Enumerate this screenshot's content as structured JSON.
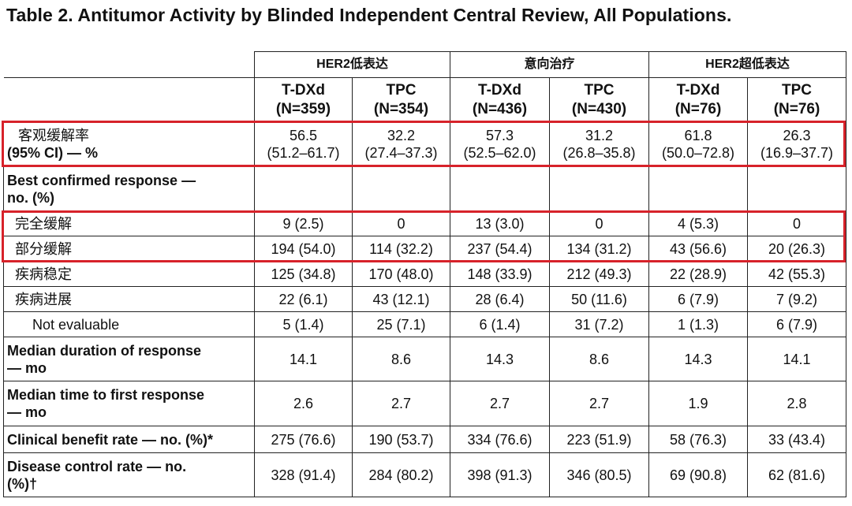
{
  "title": "Table 2. Antitumor Activity by Blinded Independent Central Review, All Populations.",
  "groups": [
    "HER2低表达",
    "意向治疗",
    "HER2超低表达"
  ],
  "arms": [
    {
      "name": "T-DXd",
      "n": "(N=359)"
    },
    {
      "name": "TPC",
      "n": "(N=354)"
    },
    {
      "name": "T-DXd",
      "n": "(N=436)"
    },
    {
      "name": "TPC",
      "n": "(N=430)"
    },
    {
      "name": "T-DXd",
      "n": "(N=76)"
    },
    {
      "name": "TPC",
      "n": "(N=76)"
    }
  ],
  "orr": {
    "label1": "客观缓解率",
    "label2": "(95% CI) — %",
    "values": [
      "56.5",
      "32.2",
      "57.3",
      "31.2",
      "61.8",
      "26.3"
    ],
    "ci": [
      "(51.2–61.7)",
      "(27.4–37.3)",
      "(52.5–62.0)",
      "(26.8–35.8)",
      "(50.0–72.8)",
      "(16.9–37.7)"
    ]
  },
  "best_response_label1": "Best confirmed response —",
  "best_response_label2": "no. (%)",
  "rows": [
    {
      "label": "完全缓解",
      "values": [
        "9 (2.5)",
        "0",
        "13 (3.0)",
        "0",
        "4 (5.3)",
        "0"
      ]
    },
    {
      "label": "部分缓解",
      "values": [
        "194 (54.0)",
        "114 (32.2)",
        "237 (54.4)",
        "134 (31.2)",
        "43 (56.6)",
        "20 (26.3)"
      ]
    },
    {
      "label": "疾病稳定",
      "values": [
        "125 (34.8)",
        "170 (48.0)",
        "148 (33.9)",
        "212 (49.3)",
        "22 (28.9)",
        "42 (55.3)"
      ]
    },
    {
      "label": "疾病进展",
      "values": [
        "22 (6.1)",
        "43 (12.1)",
        "28 (6.4)",
        "50 (11.6)",
        "6 (7.9)",
        "7 (9.2)"
      ]
    },
    {
      "label": "Not evaluable",
      "values": [
        "5 (1.4)",
        "25 (7.1)",
        "6 (1.4)",
        "31 (7.2)",
        "1 (1.3)",
        "6 (7.9)"
      ]
    }
  ],
  "dor": {
    "label1": "Median duration of response",
    "label2": "— mo",
    "values": [
      "14.1",
      "8.6",
      "14.3",
      "8.6",
      "14.3",
      "14.1"
    ]
  },
  "ttr": {
    "label1": "Median time to first response",
    "label2": "— mo",
    "values": [
      "2.6",
      "2.7",
      "2.7",
      "2.7",
      "1.9",
      "2.8"
    ]
  },
  "cbr": {
    "label": "Clinical benefit rate — no. (%)*",
    "values": [
      "275 (76.6)",
      "190 (53.7)",
      "334 (76.6)",
      "223 (51.9)",
      "58 (76.3)",
      "33 (43.4)"
    ]
  },
  "dcr": {
    "label1": "Disease control rate — no.",
    "label2": "(%)†",
    "values": [
      "328 (91.4)",
      "284 (80.2)",
      "398 (91.3)",
      "346 (80.5)",
      "69 (90.8)",
      "62 (81.6)"
    ]
  },
  "highlight_color": "#d7222a"
}
